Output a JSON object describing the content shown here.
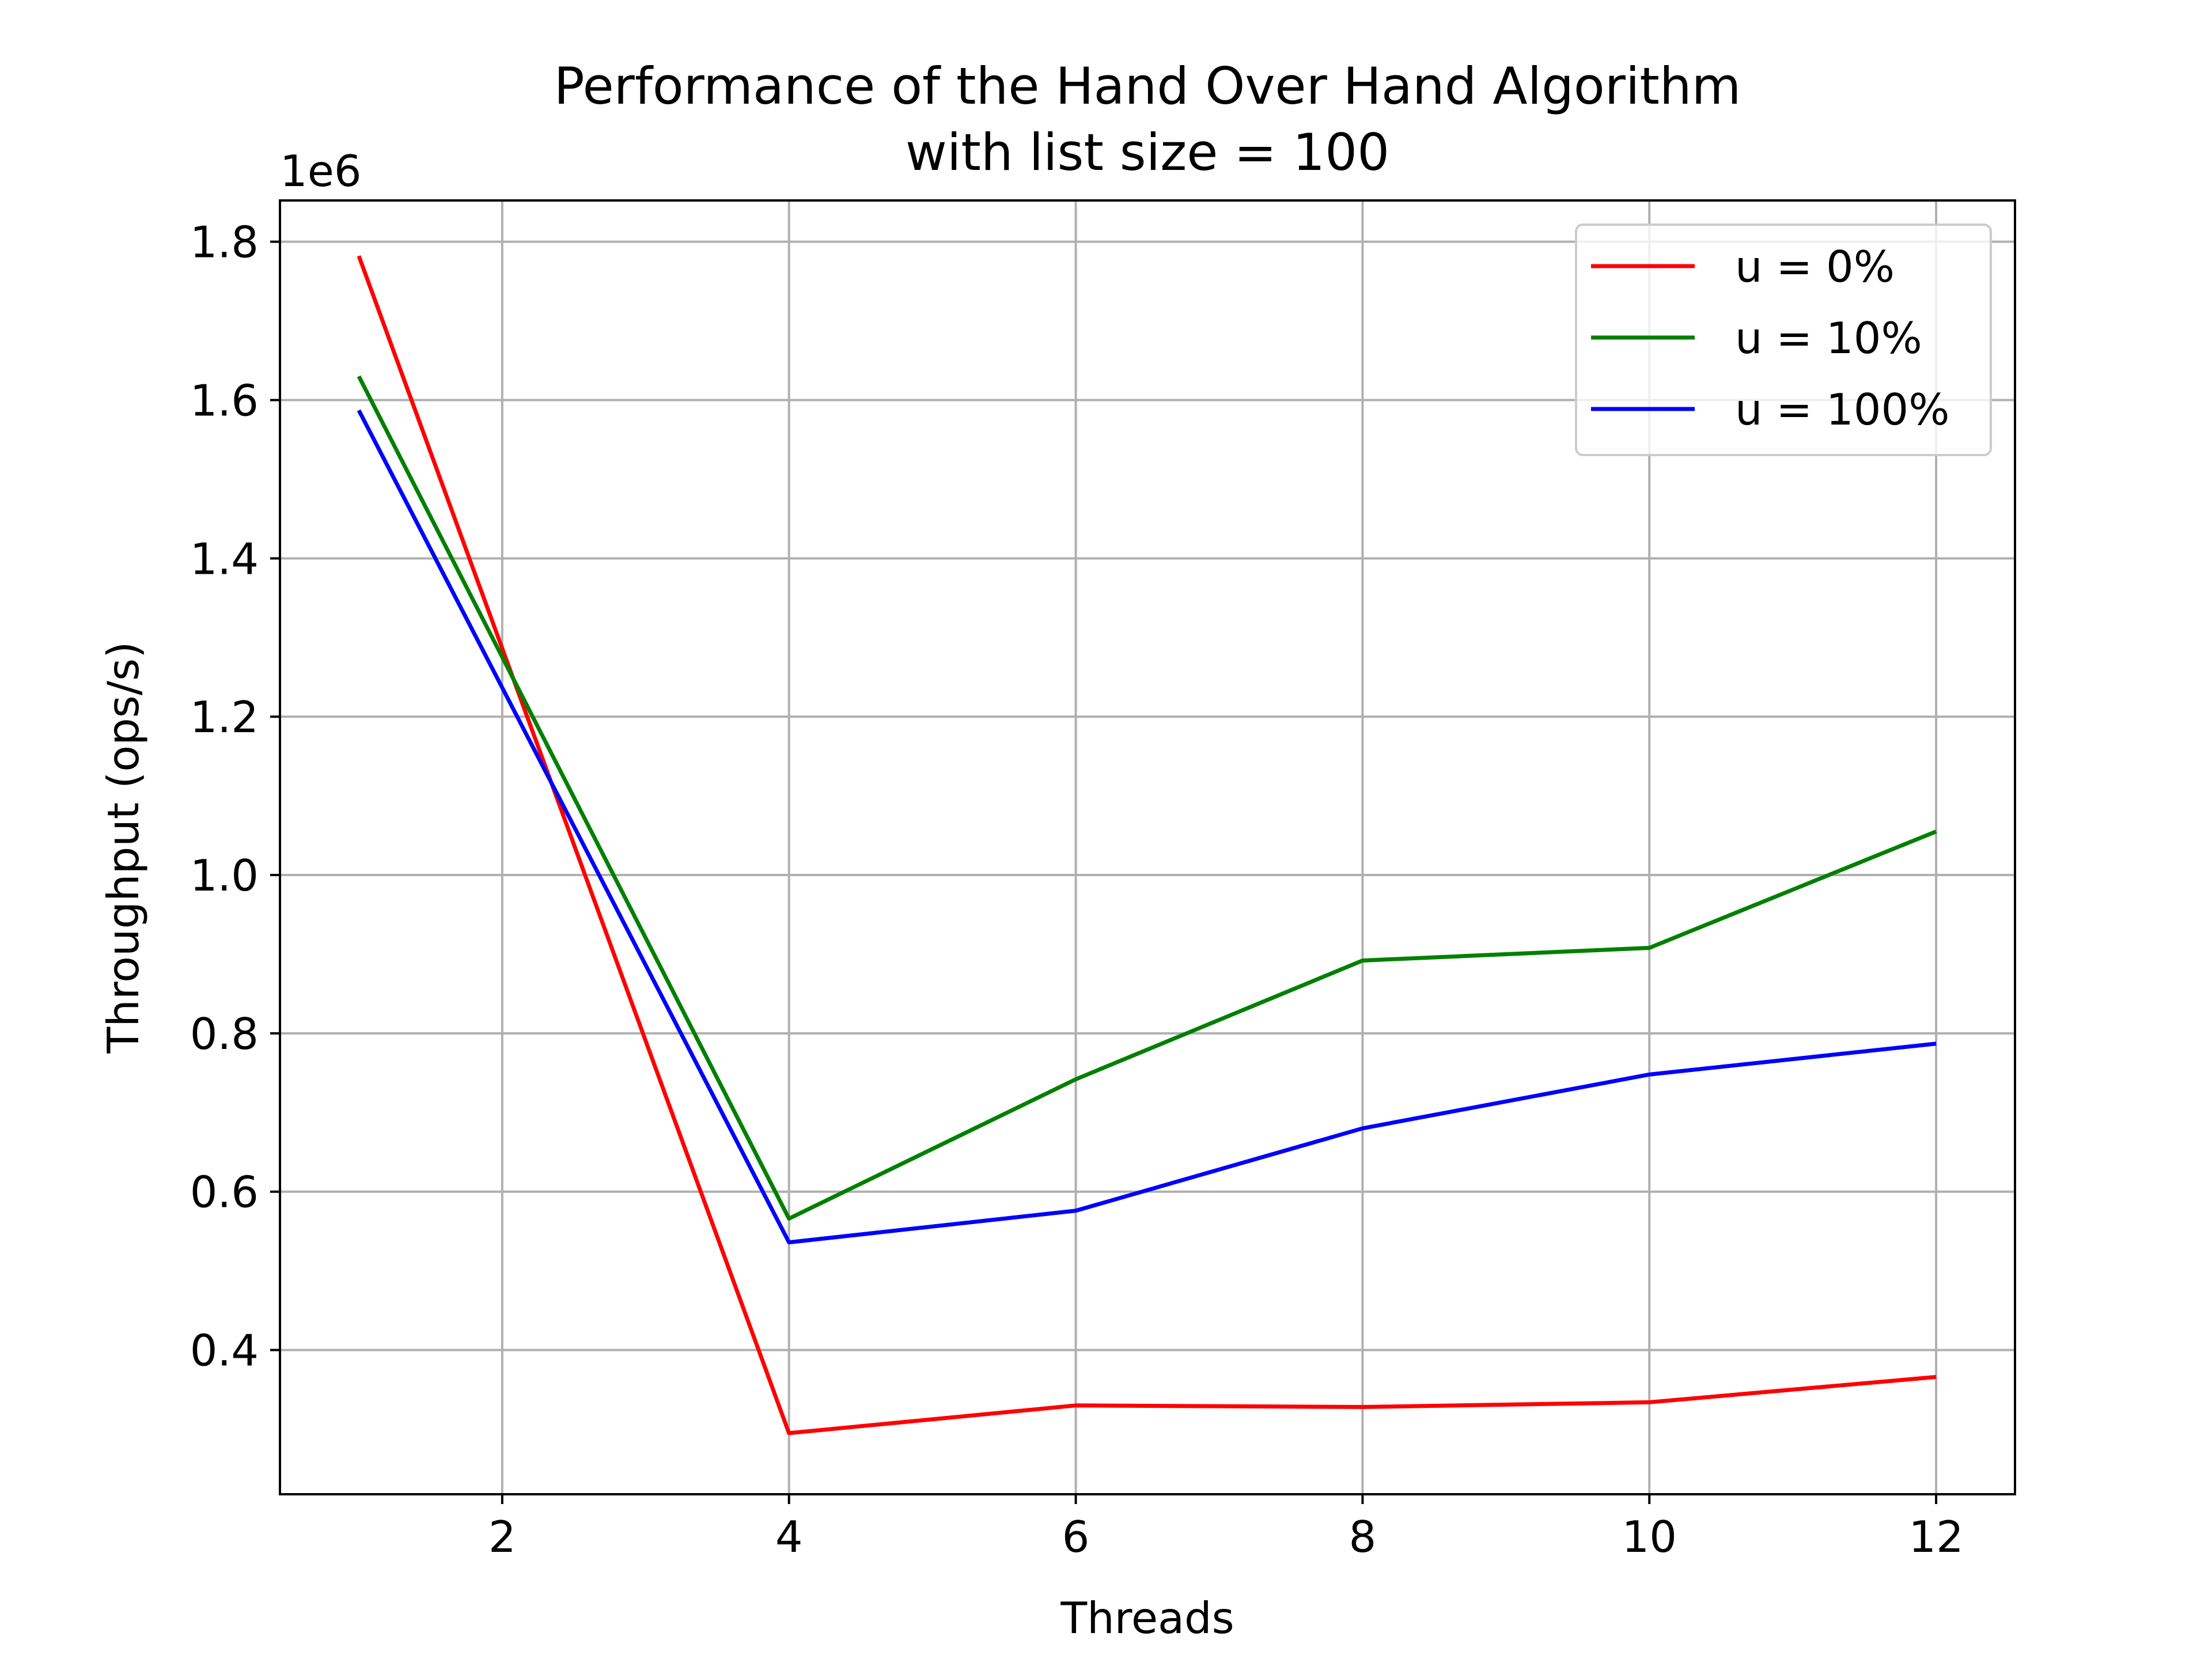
{
  "chart_data": {
    "type": "line",
    "title_line1": "Performance of the Hand Over Hand Algorithm",
    "title_line2": "with list size = 100",
    "xlabel": "Threads",
    "ylabel": "Throughput (ops/s)",
    "y_offset_label": "1e6",
    "x": [
      1,
      4,
      6,
      8,
      10,
      12
    ],
    "xlim": [
      0.45,
      12.55
    ],
    "ylim": [
      0.2178,
      1.8521
    ],
    "x_ticks": [
      2,
      4,
      6,
      8,
      10,
      12
    ],
    "x_tick_labels": [
      "2",
      "4",
      "6",
      "8",
      "10",
      "12"
    ],
    "y_ticks": [
      0.4,
      0.6,
      0.8,
      1.0,
      1.2,
      1.4,
      1.6,
      1.8
    ],
    "y_tick_labels": [
      "0.4",
      "0.6",
      "0.8",
      "1.0",
      "1.2",
      "1.4",
      "1.6",
      "1.8"
    ],
    "grid": true,
    "legend_position": "top-right",
    "series": [
      {
        "name": "u = 0%",
        "color": "#ff0000",
        "values": [
          1.782,
          0.295,
          0.33,
          0.328,
          0.334,
          0.366
        ]
      },
      {
        "name": "u = 10%",
        "color": "#008000",
        "values": [
          1.63,
          0.566,
          0.742,
          0.892,
          0.908,
          1.055
        ]
      },
      {
        "name": "u = 100%",
        "color": "#0000ff",
        "values": [
          1.587,
          0.536,
          0.576,
          0.68,
          0.748,
          0.787
        ]
      }
    ]
  }
}
